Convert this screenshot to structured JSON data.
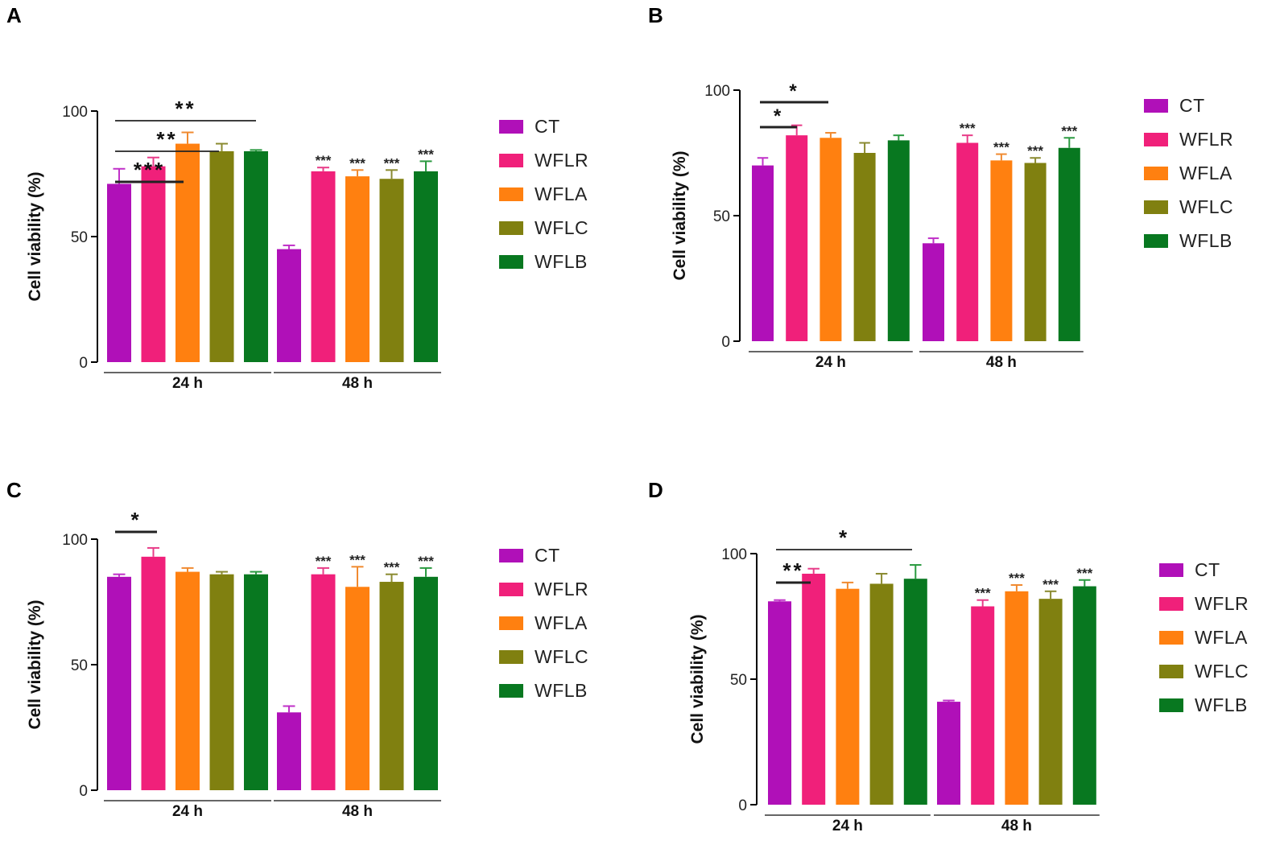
{
  "series_meta": {
    "names": [
      "CT",
      "WFLR",
      "WFLA",
      "WFLC",
      "WFLB"
    ],
    "colors": [
      "#b010b8",
      "#f0207a",
      "#ff8010",
      "#808010",
      "#087820"
    ],
    "err_colors": [
      "#c030c8",
      "#e83c88",
      "#f08a30",
      "#8a8a30",
      "#2a9a40"
    ]
  },
  "chart_data": [
    {
      "panel": "A",
      "type": "bar",
      "ylabel": "Cell viability (%)",
      "ylim": [
        0,
        100
      ],
      "yticks": [
        0,
        50,
        100
      ],
      "categories": [
        "24 h",
        "48 h"
      ],
      "series": [
        {
          "name": "CT",
          "values": [
            71,
            45
          ],
          "errors": [
            6,
            1.5
          ]
        },
        {
          "name": "WFLR",
          "values": [
            78,
            76
          ],
          "errors": [
            3.5,
            1.5
          ]
        },
        {
          "name": "WFLA",
          "values": [
            87,
            74
          ],
          "errors": [
            4.5,
            2.5
          ]
        },
        {
          "name": "WFLC",
          "values": [
            84,
            73
          ],
          "errors": [
            3,
            3.5
          ]
        },
        {
          "name": "WFLB",
          "values": [
            84,
            76
          ],
          "errors": [
            0.5,
            4
          ]
        }
      ],
      "bar_stars": {
        "24 h": [
          "",
          "",
          "",
          "",
          ""
        ],
        "48 h": [
          "",
          "***",
          "***",
          "***",
          "***"
        ]
      },
      "brackets": [
        {
          "from": 0,
          "to": 4,
          "label": "**"
        },
        {
          "from": 0,
          "to": 3,
          "label": "**"
        },
        {
          "from": 0,
          "to": 2,
          "label": "***"
        }
      ]
    },
    {
      "panel": "B",
      "type": "bar",
      "ylabel": "Cell viability (%)",
      "ylim": [
        0,
        100
      ],
      "yticks": [
        0,
        50,
        100
      ],
      "categories": [
        "24 h",
        "48 h"
      ],
      "series": [
        {
          "name": "CT",
          "values": [
            70,
            39
          ],
          "errors": [
            3,
            2
          ]
        },
        {
          "name": "WFLR",
          "values": [
            82,
            79
          ],
          "errors": [
            4,
            3
          ]
        },
        {
          "name": "WFLA",
          "values": [
            81,
            72
          ],
          "errors": [
            2,
            2.5
          ]
        },
        {
          "name": "WFLC",
          "values": [
            75,
            71
          ],
          "errors": [
            4,
            2
          ]
        },
        {
          "name": "WFLB",
          "values": [
            80,
            77
          ],
          "errors": [
            2,
            4
          ]
        }
      ],
      "bar_stars": {
        "24 h": [
          "",
          "",
          "",
          "",
          ""
        ],
        "48 h": [
          "",
          "***",
          "***",
          "***",
          "***"
        ]
      },
      "brackets": [
        {
          "from": 0,
          "to": 2,
          "label": "*"
        },
        {
          "from": 0,
          "to": 1,
          "label": "*"
        }
      ]
    },
    {
      "panel": "C",
      "type": "bar",
      "ylabel": "Cell viability (%)",
      "ylim": [
        0,
        100
      ],
      "yticks": [
        0,
        50,
        100
      ],
      "categories": [
        "24 h",
        "48 h"
      ],
      "series": [
        {
          "name": "CT",
          "values": [
            85,
            31
          ],
          "errors": [
            1,
            2.5
          ]
        },
        {
          "name": "WFLR",
          "values": [
            93,
            86
          ],
          "errors": [
            3.5,
            2.5
          ]
        },
        {
          "name": "WFLA",
          "values": [
            87,
            81
          ],
          "errors": [
            1.5,
            8
          ]
        },
        {
          "name": "WFLC",
          "values": [
            86,
            83
          ],
          "errors": [
            1,
            3
          ]
        },
        {
          "name": "WFLB",
          "values": [
            86,
            85
          ],
          "errors": [
            1,
            3.5
          ]
        }
      ],
      "bar_stars": {
        "24 h": [
          "",
          "",
          "",
          "",
          ""
        ],
        "48 h": [
          "",
          "***",
          "***",
          "***",
          "***"
        ]
      },
      "brackets": [
        {
          "from": 0,
          "to": 1,
          "label": "*"
        }
      ]
    },
    {
      "panel": "D",
      "type": "bar",
      "ylabel": "Cell viability (%)",
      "ylim": [
        0,
        100
      ],
      "yticks": [
        0,
        50,
        100
      ],
      "categories": [
        "24 h",
        "48 h"
      ],
      "series": [
        {
          "name": "CT",
          "values": [
            81,
            41
          ],
          "errors": [
            0.5,
            0.5
          ]
        },
        {
          "name": "WFLR",
          "values": [
            92,
            79
          ],
          "errors": [
            2,
            2.5
          ]
        },
        {
          "name": "WFLA",
          "values": [
            86,
            85
          ],
          "errors": [
            2.5,
            2.5
          ]
        },
        {
          "name": "WFLC",
          "values": [
            88,
            82
          ],
          "errors": [
            4,
            3
          ]
        },
        {
          "name": "WFLB",
          "values": [
            90,
            87
          ],
          "errors": [
            5.5,
            2.5
          ]
        }
      ],
      "bar_stars": {
        "24 h": [
          "",
          "",
          "",
          "",
          ""
        ],
        "48 h": [
          "",
          "***",
          "***",
          "***",
          "***"
        ]
      },
      "brackets": [
        {
          "from": 0,
          "to": 4,
          "label": "*"
        },
        {
          "from": 0,
          "to": 1,
          "label": "**"
        }
      ]
    }
  ]
}
